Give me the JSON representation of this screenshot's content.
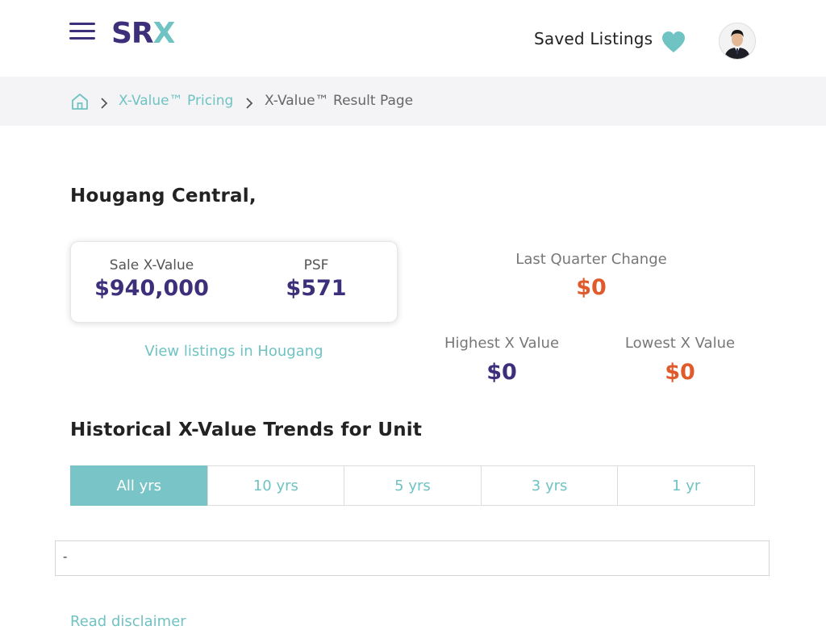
{
  "header": {
    "logo_sr": "SR",
    "logo_x": "X",
    "saved_listings_label": "Saved Listings",
    "accent_color": "#6fc3c2",
    "brand_color": "#3e2f7a"
  },
  "breadcrumb": {
    "link_label": "X-Value™ Pricing",
    "current_label": "X-Value™ Result Page"
  },
  "property": {
    "address": "Hougang Central,"
  },
  "value_card": {
    "sale_label": "Sale X-Value",
    "sale_value": "$940,000",
    "psf_label": "PSF",
    "psf_value": "$571"
  },
  "stats": {
    "last_quarter_label": "Last Quarter Change",
    "last_quarter_value": "$0",
    "highest_label": "Highest X Value",
    "highest_value": "$0",
    "lowest_label": "Lowest X Value",
    "lowest_value": "$0"
  },
  "view_listings_label": "View listings in Hougang",
  "trends": {
    "title": "Historical X-Value Trends for Unit",
    "tabs": [
      {
        "label": "All yrs",
        "active": true
      },
      {
        "label": "10 yrs",
        "active": false
      },
      {
        "label": "5 yrs",
        "active": false
      },
      {
        "label": "3 yrs",
        "active": false
      },
      {
        "label": "1 yr",
        "active": false
      }
    ],
    "placeholder": "-"
  },
  "disclaimer_label": "Read disclaimer"
}
